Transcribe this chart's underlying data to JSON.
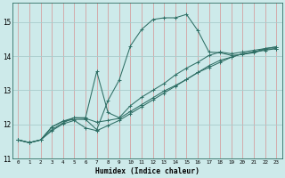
{
  "bg_color": "#cdeaea",
  "line_color": "#2e6e64",
  "grid_color_v": "#d4a0a0",
  "grid_color_h": "#a8cccc",
  "xlabel": "Humidex (Indice chaleur)",
  "xlim": [
    -0.5,
    23.5
  ],
  "ylim": [
    11.0,
    15.55
  ],
  "yticks": [
    11,
    12,
    13,
    14,
    15
  ],
  "xticks": [
    0,
    1,
    2,
    3,
    4,
    5,
    6,
    7,
    8,
    9,
    10,
    11,
    12,
    13,
    14,
    15,
    16,
    17,
    18,
    19,
    20,
    21,
    22,
    23
  ],
  "curve1_x": [
    0,
    1,
    2,
    3,
    4,
    5,
    6,
    7,
    8,
    9,
    10,
    11,
    12,
    13,
    14,
    15,
    16,
    17,
    18,
    19,
    20,
    21,
    22,
    23
  ],
  "curve1_y": [
    11.55,
    11.47,
    11.55,
    11.93,
    12.1,
    12.15,
    12.15,
    11.85,
    12.7,
    13.3,
    14.3,
    14.78,
    15.07,
    15.12,
    15.12,
    15.22,
    14.75,
    14.12,
    14.1,
    14.02,
    14.05,
    14.1,
    14.2,
    14.22
  ],
  "curve2_x": [
    0,
    1,
    2,
    3,
    4,
    5,
    6,
    7,
    8,
    9,
    10,
    11,
    12,
    13,
    14,
    15,
    16,
    17,
    18,
    19,
    20,
    21,
    22,
    23
  ],
  "curve2_y": [
    11.55,
    11.47,
    11.55,
    11.93,
    12.1,
    12.2,
    12.2,
    13.55,
    12.35,
    12.2,
    12.55,
    12.8,
    13.0,
    13.2,
    13.45,
    13.65,
    13.82,
    14.02,
    14.12,
    14.07,
    14.12,
    14.17,
    14.22,
    14.27
  ],
  "curve3_x": [
    0,
    1,
    2,
    3,
    4,
    5,
    6,
    7,
    8,
    9,
    10,
    11,
    12,
    13,
    14,
    15,
    16,
    17,
    18,
    19,
    20,
    21,
    22,
    23
  ],
  "curve3_y": [
    11.55,
    11.47,
    11.55,
    11.85,
    12.05,
    12.2,
    12.18,
    12.07,
    12.12,
    12.18,
    12.38,
    12.58,
    12.78,
    12.98,
    13.14,
    13.32,
    13.52,
    13.72,
    13.88,
    13.97,
    14.07,
    14.12,
    14.22,
    14.27
  ],
  "curve4_x": [
    0,
    1,
    2,
    3,
    4,
    5,
    6,
    7,
    8,
    9,
    10,
    11,
    12,
    13,
    14,
    15,
    16,
    17,
    18,
    19,
    20,
    21,
    22,
    23
  ],
  "curve4_y": [
    11.55,
    11.47,
    11.55,
    11.82,
    12.02,
    12.12,
    11.9,
    11.82,
    11.97,
    12.12,
    12.32,
    12.52,
    12.72,
    12.92,
    13.12,
    13.32,
    13.52,
    13.67,
    13.82,
    13.97,
    14.07,
    14.12,
    14.17,
    14.22
  ]
}
